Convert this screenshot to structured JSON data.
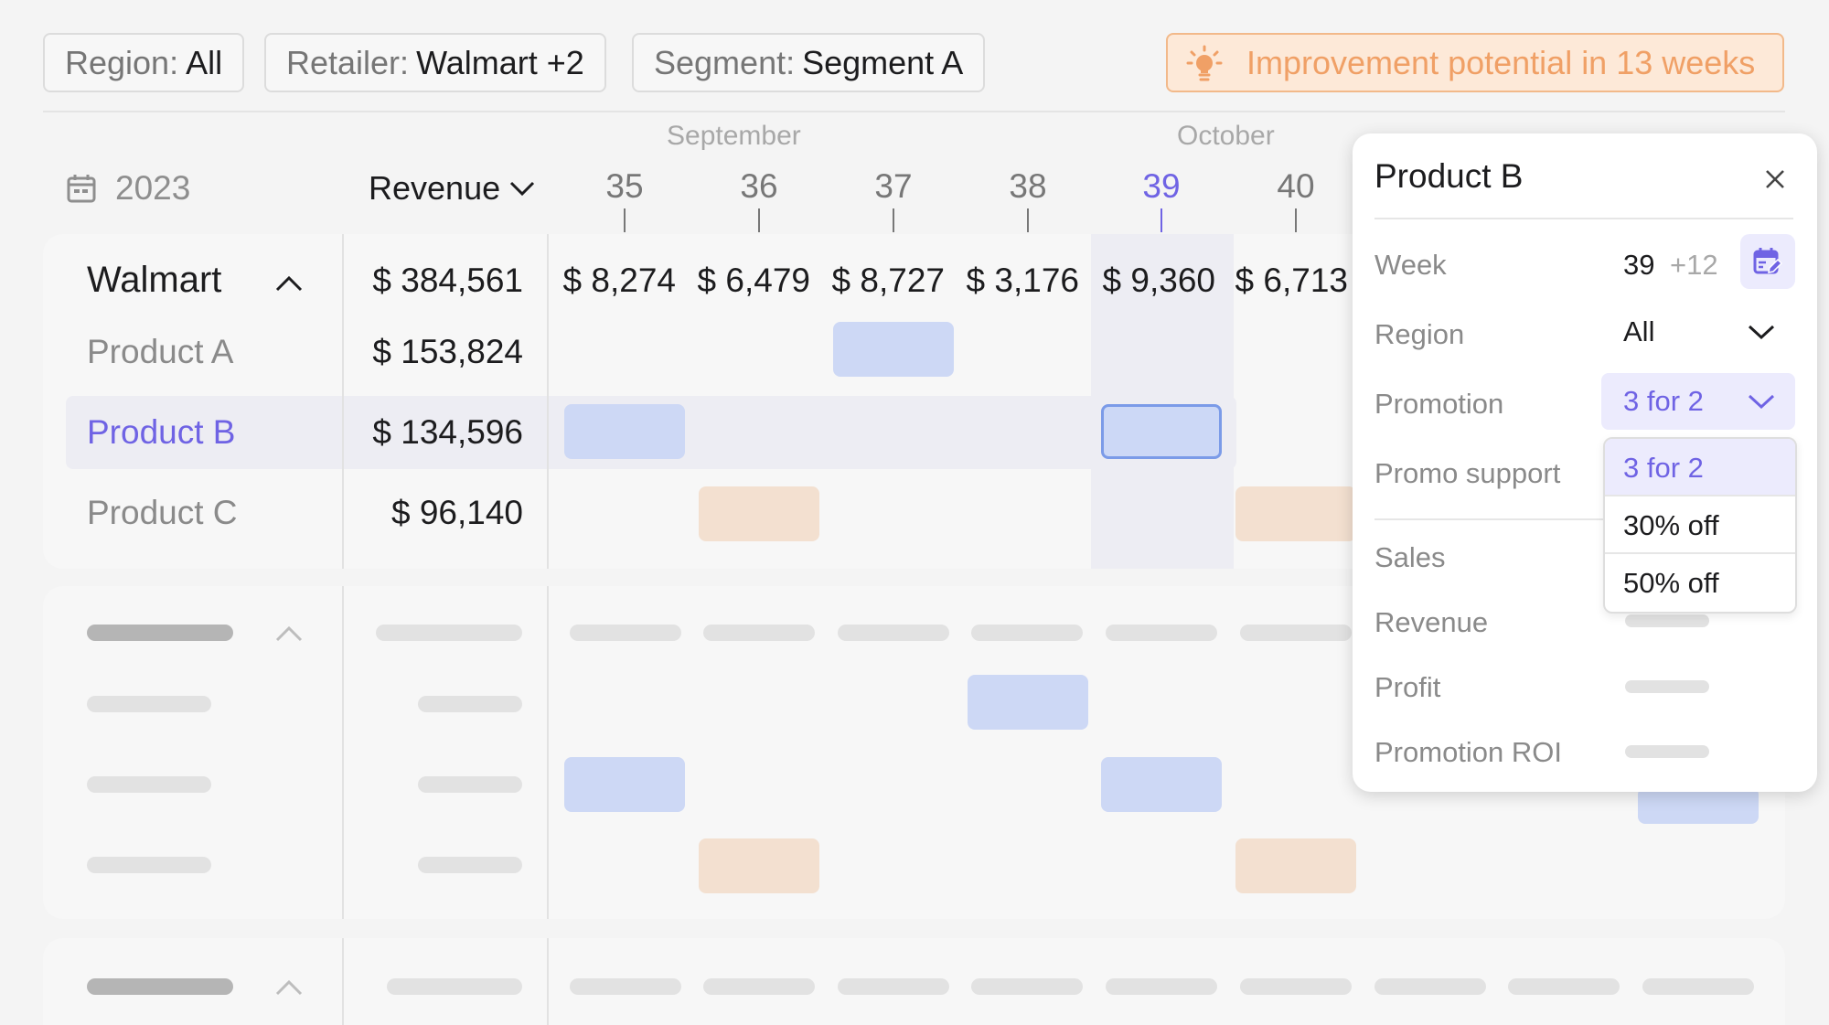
{
  "filters": [
    {
      "key": "Region:",
      "value": "All"
    },
    {
      "key": "Retailer:",
      "value": "Walmart +2"
    },
    {
      "key": "Segment:",
      "value": "Segment A"
    }
  ],
  "insight": {
    "text": "Improvement potential in 13 weeks",
    "icon": "lightbulb-icon",
    "color": "#f0a066"
  },
  "header": {
    "year": "2023",
    "metric": "Revenue",
    "months": [
      "September",
      "October"
    ],
    "weeks": [
      "35",
      "36",
      "37",
      "38",
      "39",
      "40"
    ],
    "active_week": "39"
  },
  "group": {
    "name": "Walmart",
    "total": "$ 384,561",
    "week_totals": [
      "$ 8,274",
      "$ 6,479",
      "$ 8,727",
      "$ 3,176",
      "$ 9,360",
      "$ 6,713"
    ],
    "products": [
      {
        "name": "Product A",
        "total": "$ 153,824"
      },
      {
        "name": "Product B",
        "total": "$ 134,596",
        "selected": true
      },
      {
        "name": "Product C",
        "total": "$ 96,140"
      }
    ]
  },
  "panel": {
    "title": "Product B",
    "week_label": "Week",
    "week_value": "39",
    "week_extra": "+12",
    "region_label": "Region",
    "region_value": "All",
    "promotion_label": "Promotion",
    "promotion_value": "3 for 2",
    "promo_support_label": "Promo support",
    "sales_label": "Sales",
    "revenue_label": "Revenue",
    "profit_label": "Profit",
    "roi_label": "Promotion ROI",
    "promotion_options": [
      "3 for 2",
      "30% off",
      "50% off"
    ]
  },
  "colors": {
    "accent": "#6f63e4",
    "promo_blue": "#cdd8f5",
    "promo_peach": "#f3e0d0"
  }
}
